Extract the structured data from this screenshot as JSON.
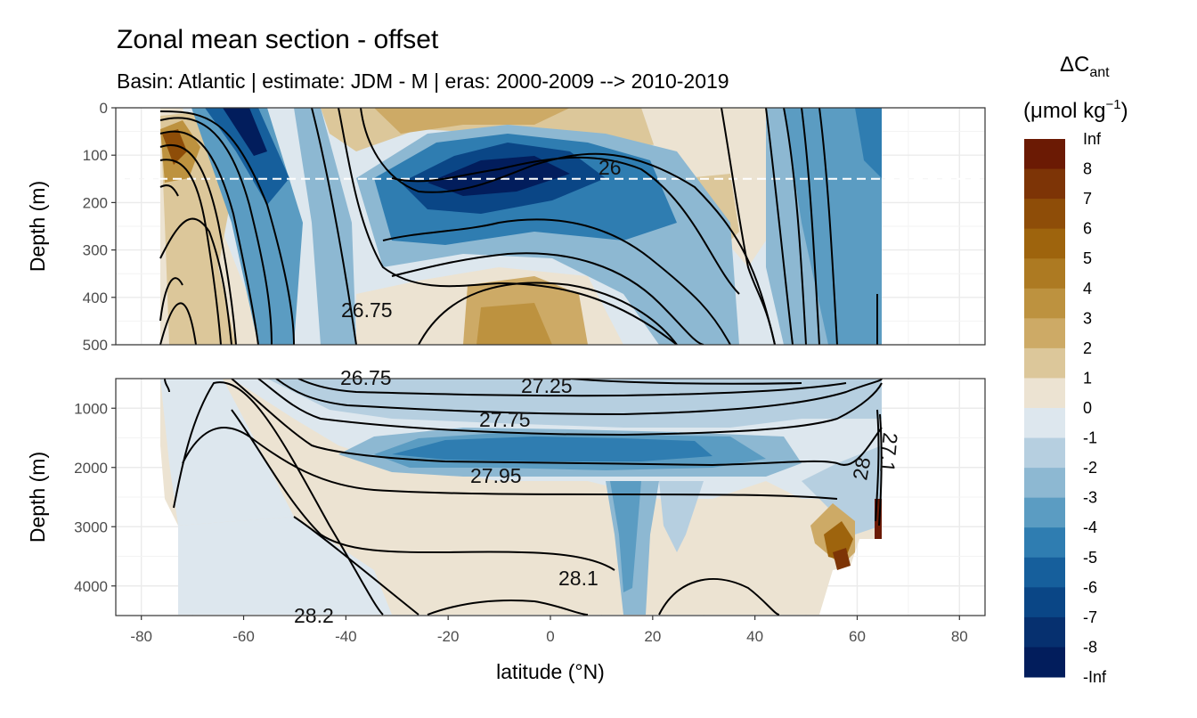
{
  "chart_data": {
    "type": "heatmap",
    "title": "Zonal mean section - offset",
    "subtitle": "Basin: Atlantic | estimate: JDM - M | eras: 2000-2009 --> 2010-2019",
    "xlabel": "latitude (°N)",
    "ylabel": "Depth (m)",
    "x_ticks": [
      -80,
      -60,
      -40,
      -20,
      0,
      20,
      40,
      60,
      80
    ],
    "xlim": [
      -85,
      85
    ],
    "grid": true,
    "legend_placement": "right",
    "legend": {
      "title_main": "ΔC",
      "title_sub": "ant",
      "unit_main": "(μmol kg",
      "unit_sup": "−1",
      "unit_end": ")",
      "breaks": [
        "Inf",
        "8",
        "7",
        "6",
        "5",
        "4",
        "3",
        "2",
        "1",
        "0",
        "-1",
        "-2",
        "-3",
        "-4",
        "-5",
        "-6",
        "-7",
        "-8",
        "-Inf"
      ],
      "colors": [
        "#6b1a04",
        "#7d3406",
        "#8e4d08",
        "#9e640d",
        "#ad7a22",
        "#bd923f",
        "#cdaa66",
        "#dcc79a",
        "#ece3d2",
        "#dde7ee",
        "#b6cfe0",
        "#8db8d2",
        "#5b9cc2",
        "#2f7db1",
        "#165f9c",
        "#0a4686",
        "#06306f",
        "#021d5c"
      ]
    },
    "panels": [
      {
        "ylim": [
          0,
          500
        ],
        "y_ticks": [
          0,
          100,
          200,
          300,
          400,
          500
        ],
        "hline_depth": 150,
        "isopycnal_labels": [
          "26",
          "26.75"
        ]
      },
      {
        "ylim": [
          500,
          4500
        ],
        "y_ticks": [
          1000,
          2000,
          3000,
          4000
        ],
        "isopycnal_labels": [
          "26.75",
          "27.25",
          "27.75",
          "27.95",
          "28.1",
          "28.2",
          "28",
          "27.1"
        ]
      }
    ]
  }
}
